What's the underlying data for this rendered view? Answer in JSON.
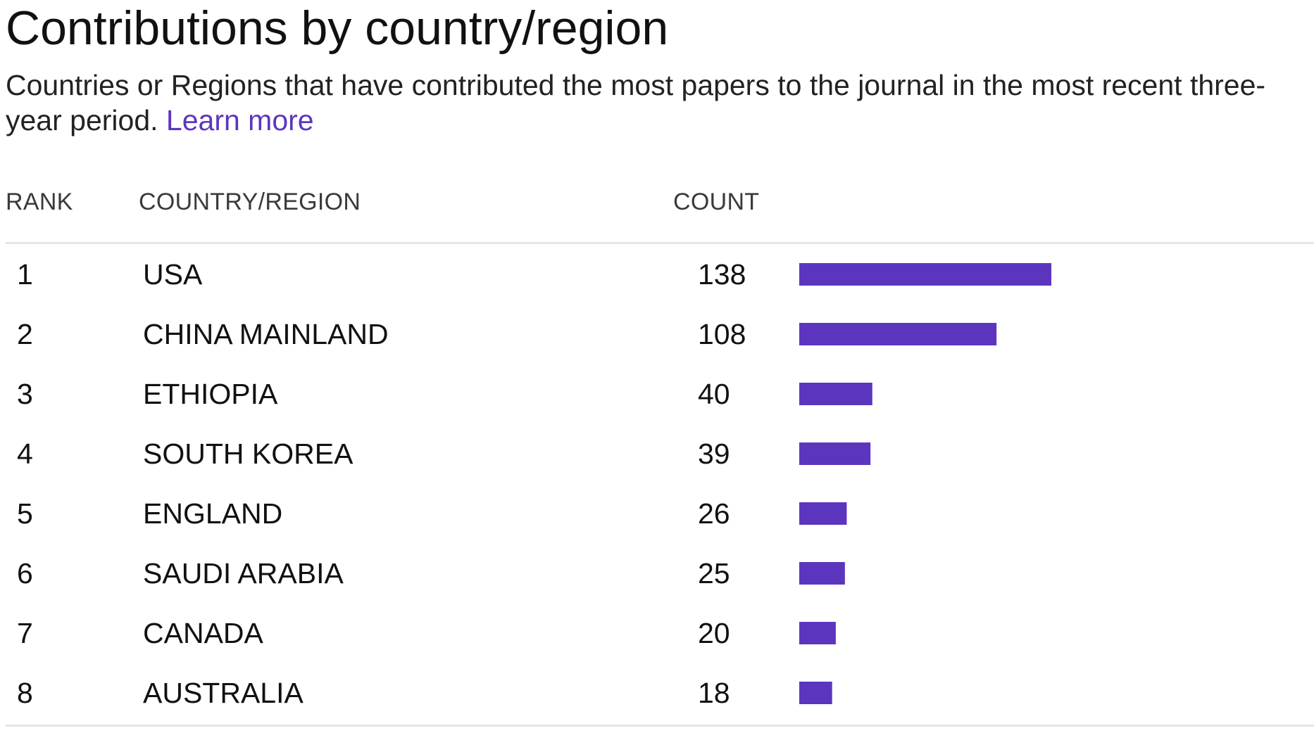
{
  "title": "Contributions by country/region",
  "subtitle": "Countries or Regions that have contributed the most papers to the journal in the most recent three-year period.",
  "learn_more": "Learn more",
  "columns": {
    "rank": "RANK",
    "country": "COUNTRY/REGION",
    "count": "COUNT"
  },
  "colors": {
    "bar": "#5c35bf",
    "link": "#5c35bf"
  },
  "chart_data": {
    "type": "bar",
    "orientation": "horizontal",
    "title": "Contributions by country/region",
    "categories": [
      "USA",
      "CHINA MAINLAND",
      "ETHIOPIA",
      "SOUTH KOREA",
      "ENGLAND",
      "SAUDI ARABIA",
      "CANADA",
      "AUSTRALIA"
    ],
    "ranks": [
      "1",
      "2",
      "3",
      "4",
      "5",
      "6",
      "7",
      "8"
    ],
    "values": [
      138,
      108,
      40,
      39,
      26,
      25,
      20,
      18
    ],
    "xlim": [
      0,
      138
    ],
    "grid": false,
    "legend": "none"
  }
}
